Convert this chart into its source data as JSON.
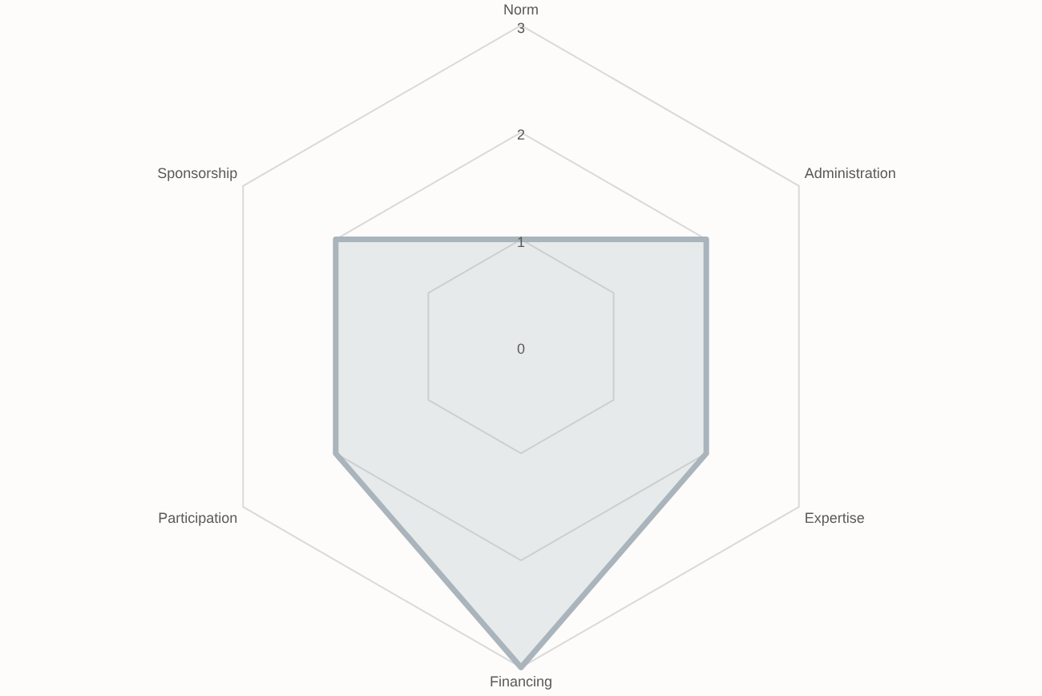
{
  "chart_data": {
    "type": "radar",
    "categories": [
      "Norm",
      "Administration",
      "Expertise",
      "Financing",
      "Participation",
      "Sponsorship"
    ],
    "series": [
      {
        "color": "#a9b4bc",
        "values": [
          1,
          2,
          2,
          3,
          2,
          2
        ]
      }
    ],
    "ylim": [
      0,
      3
    ],
    "yticks": [
      0,
      1,
      2,
      3
    ],
    "grid": true,
    "legend": false,
    "marker": "none",
    "line_style": "solid"
  }
}
